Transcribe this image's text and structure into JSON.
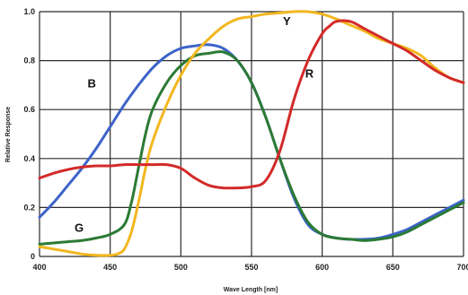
{
  "chart_data": {
    "type": "line",
    "title": "",
    "xlabel": "Wave Length [nm]",
    "ylabel": "Relative Response",
    "xlim": [
      400,
      700
    ],
    "ylim": [
      0,
      1.0
    ],
    "grid": true,
    "x_ticks": [
      400,
      450,
      500,
      550,
      600,
      650,
      700
    ],
    "y_ticks": [
      0,
      0.2,
      0.4,
      0.6,
      0.8,
      1.0
    ],
    "x_tick_labels": [
      "400",
      "450",
      "500",
      "550",
      "600",
      "650",
      "700"
    ],
    "y_tick_labels": [
      "0",
      "0.2",
      "0.4",
      "0.6",
      "0.8",
      "1.0"
    ],
    "series": [
      {
        "name": "B",
        "color": "#3d63c9",
        "x": [
          400,
          410,
          420,
          430,
          440,
          450,
          460,
          470,
          480,
          490,
          500,
          510,
          520,
          530,
          540,
          550,
          560,
          570,
          580,
          590,
          600,
          610,
          620,
          630,
          640,
          650,
          660,
          670,
          680,
          690,
          700
        ],
        "y": [
          0.16,
          0.22,
          0.29,
          0.36,
          0.44,
          0.53,
          0.62,
          0.7,
          0.77,
          0.82,
          0.85,
          0.86,
          0.865,
          0.85,
          0.8,
          0.71,
          0.57,
          0.4,
          0.24,
          0.13,
          0.09,
          0.075,
          0.07,
          0.07,
          0.075,
          0.09,
          0.11,
          0.14,
          0.17,
          0.2,
          0.23
        ]
      },
      {
        "name": "G",
        "color": "#2b7a34",
        "x": [
          400,
          410,
          420,
          430,
          440,
          450,
          460,
          465,
          470,
          475,
          480,
          490,
          500,
          510,
          520,
          530,
          540,
          550,
          560,
          570,
          580,
          590,
          600,
          610,
          620,
          630,
          640,
          650,
          660,
          670,
          680,
          690,
          700
        ],
        "y": [
          0.05,
          0.055,
          0.06,
          0.065,
          0.075,
          0.09,
          0.13,
          0.22,
          0.36,
          0.5,
          0.6,
          0.71,
          0.78,
          0.82,
          0.83,
          0.835,
          0.8,
          0.71,
          0.57,
          0.4,
          0.25,
          0.14,
          0.09,
          0.075,
          0.07,
          0.065,
          0.07,
          0.08,
          0.1,
          0.13,
          0.16,
          0.19,
          0.22
        ]
      },
      {
        "name": "Y",
        "color": "#f2b71f",
        "x": [
          400,
          410,
          420,
          430,
          440,
          450,
          455,
          460,
          465,
          470,
          475,
          480,
          490,
          500,
          510,
          520,
          530,
          540,
          550,
          560,
          570,
          580,
          590,
          600,
          610,
          620,
          630,
          640,
          650,
          660,
          670,
          680,
          690,
          700
        ],
        "y": [
          0.04,
          0.03,
          0.02,
          0.01,
          0.005,
          0.005,
          0.01,
          0.03,
          0.1,
          0.22,
          0.36,
          0.47,
          0.62,
          0.74,
          0.83,
          0.89,
          0.94,
          0.97,
          0.98,
          0.99,
          0.995,
          1.0,
          1.0,
          0.99,
          0.97,
          0.945,
          0.92,
          0.89,
          0.87,
          0.85,
          0.82,
          0.77,
          0.73,
          0.71
        ]
      },
      {
        "name": "R",
        "color": "#d32a2a",
        "x": [
          400,
          410,
          420,
          430,
          440,
          450,
          460,
          470,
          480,
          490,
          500,
          510,
          520,
          530,
          540,
          550,
          560,
          570,
          580,
          590,
          600,
          605,
          610,
          620,
          630,
          640,
          650,
          660,
          670,
          680,
          690,
          700
        ],
        "y": [
          0.32,
          0.34,
          0.355,
          0.365,
          0.37,
          0.37,
          0.375,
          0.375,
          0.375,
          0.375,
          0.36,
          0.32,
          0.29,
          0.28,
          0.28,
          0.285,
          0.31,
          0.43,
          0.64,
          0.8,
          0.91,
          0.94,
          0.96,
          0.96,
          0.93,
          0.9,
          0.87,
          0.84,
          0.8,
          0.76,
          0.73,
          0.71
        ]
      }
    ],
    "labels": [
      {
        "text": "B",
        "x": 437,
        "y": 0.69,
        "series": "B"
      },
      {
        "text": "G",
        "x": 428,
        "y": 0.1,
        "series": "G"
      },
      {
        "text": "Y",
        "x": 575,
        "y": 0.945,
        "series": "Y"
      },
      {
        "text": "R",
        "x": 591,
        "y": 0.73,
        "series": "R"
      }
    ]
  }
}
